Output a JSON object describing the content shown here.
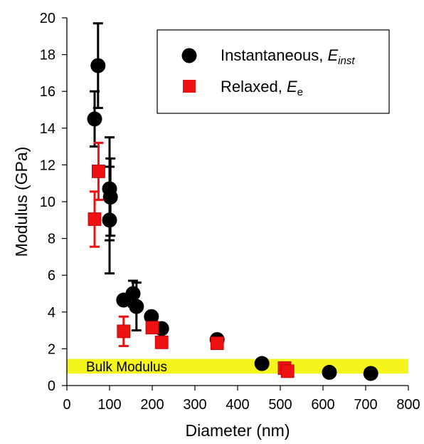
{
  "chart_data": {
    "type": "scatter",
    "xlabel": "Diameter (nm)",
    "ylabel": "Modulus (GPa)",
    "xlim": [
      0,
      800
    ],
    "ylim": [
      0,
      20
    ],
    "xticks": [
      0,
      100,
      200,
      300,
      400,
      500,
      600,
      700,
      800
    ],
    "yticks": [
      0,
      2,
      4,
      6,
      8,
      10,
      12,
      14,
      16,
      18,
      20
    ],
    "grid": false,
    "legend_position": "top-right",
    "band": {
      "label": "Bulk Modulus",
      "ymin": 0.65,
      "ymax": 1.45,
      "color": "#f5f51e"
    },
    "series": [
      {
        "name": "Instantaneous, ",
        "name_sub": "inst",
        "marker": "circle",
        "color": "#000000",
        "points": [
          {
            "x": 65,
            "y": 14.5,
            "err": 1.5
          },
          {
            "x": 73,
            "y": 17.4,
            "err": 2.3
          },
          {
            "x": 100,
            "y": 10.7,
            "err": 2.8
          },
          {
            "x": 102,
            "y": 10.25,
            "err": 2.1
          },
          {
            "x": 100,
            "y": 9.0,
            "err": 2.9
          },
          {
            "x": 133,
            "y": 4.65,
            "err": 0.2
          },
          {
            "x": 155,
            "y": 5.0,
            "err": 0.7
          },
          {
            "x": 163,
            "y": 4.3,
            "err": 1.3
          },
          {
            "x": 198,
            "y": 3.75,
            "err": 0.25
          },
          {
            "x": 222,
            "y": 3.1,
            "err": 0.2
          },
          {
            "x": 352,
            "y": 2.5,
            "err": 0.2
          },
          {
            "x": 457,
            "y": 1.2,
            "err": 0
          },
          {
            "x": 615,
            "y": 0.72,
            "err": 0
          },
          {
            "x": 712,
            "y": 0.66,
            "err": 0
          }
        ]
      },
      {
        "name": "Relaxed, ",
        "name_sub": "e",
        "marker": "square",
        "color": "#ee1111",
        "points": [
          {
            "x": 65,
            "y": 9.05,
            "err": 1.5
          },
          {
            "x": 74,
            "y": 11.65,
            "err": 1.55
          },
          {
            "x": 133,
            "y": 2.95,
            "err": 0.8
          },
          {
            "x": 200,
            "y": 3.15,
            "err": 0.2
          },
          {
            "x": 222,
            "y": 2.35,
            "err": 0.15
          },
          {
            "x": 352,
            "y": 2.3,
            "err": 0.15
          },
          {
            "x": 510,
            "y": 0.95,
            "err": 0
          },
          {
            "x": 517,
            "y": 0.78,
            "err": 0
          }
        ]
      }
    ]
  }
}
